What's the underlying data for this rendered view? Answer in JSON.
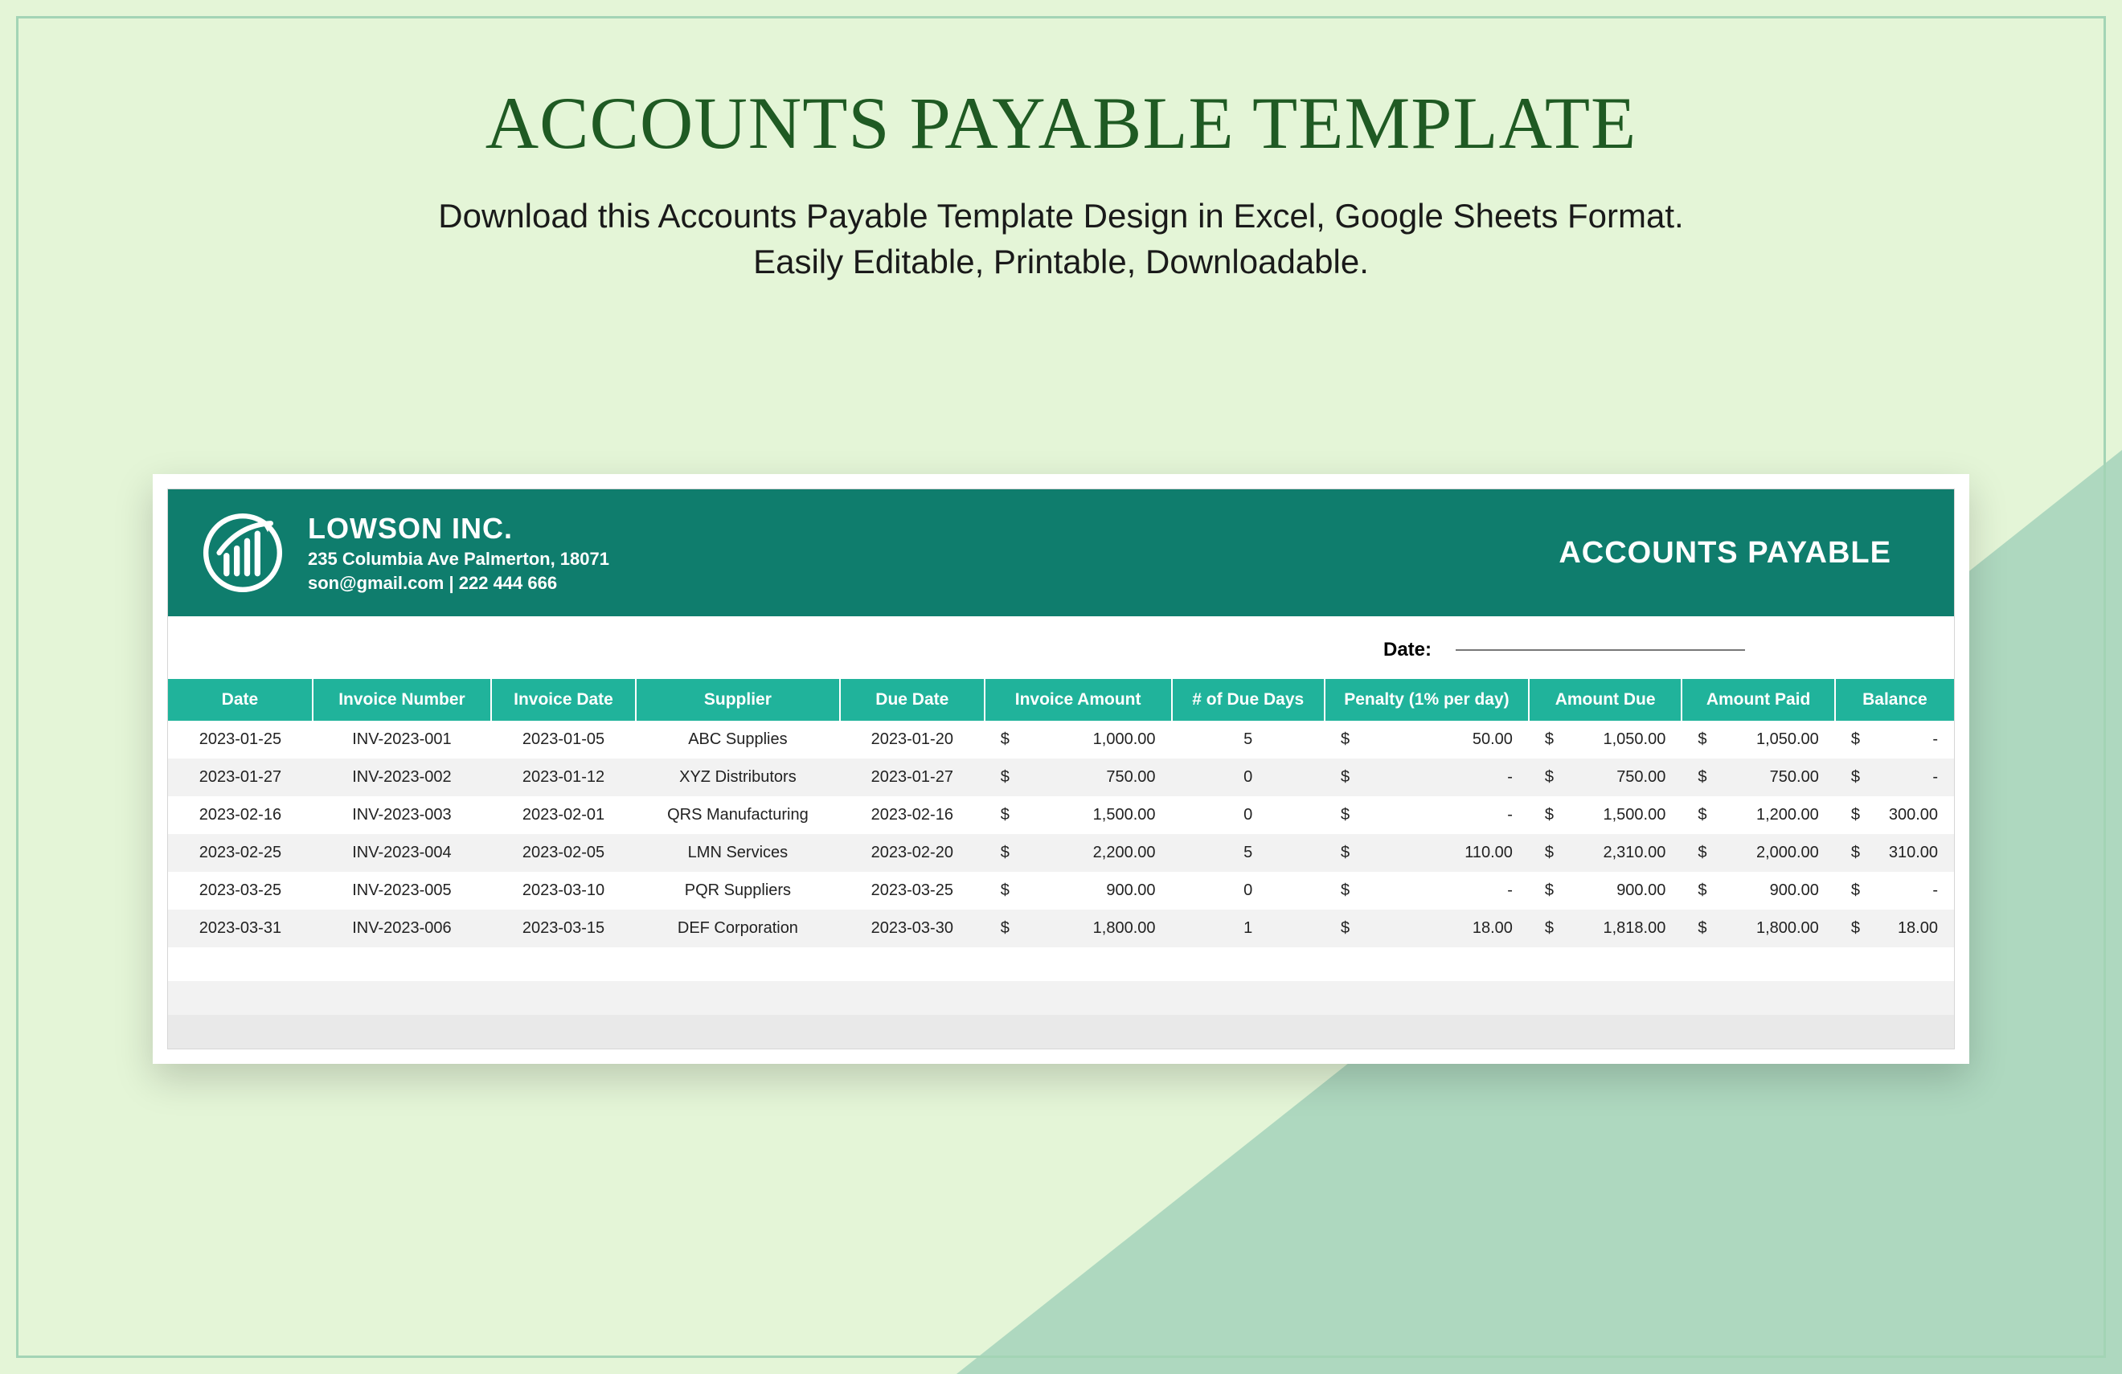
{
  "colors": {
    "page_bg": "#e4f5d7",
    "frame_border": "#a3d4b5",
    "triangle": "#aed8bf",
    "title_text": "#1f5a23",
    "subtitle_text": "#1a1a1a",
    "card_bg": "#ffffff",
    "card_border": "#d6d6d6",
    "banner_bg": "#0f7d6d",
    "banner_text": "#ffffff",
    "thead_bg": "#20b39b",
    "row_alt_bg": "#f2f2f2",
    "footer_bg": "#e9e9e9"
  },
  "hero": {
    "title": "ACCOUNTS PAYABLE TEMPLATE",
    "subtitle_line1": "Download this Accounts Payable Template Design in Excel, Google Sheets Format.",
    "subtitle_line2": "Easily Editable, Printable, Downloadable."
  },
  "banner": {
    "company_name": "LOWSON INC.",
    "address": "235 Columbia Ave Palmerton, 18071",
    "contact": "son@gmail.com | 222 444 666",
    "title": "ACCOUNTS PAYABLE"
  },
  "date_label": "Date:",
  "table": {
    "column_widths_pct": [
      8.5,
      10.5,
      8.5,
      12,
      8.5,
      11,
      9,
      12,
      9,
      9,
      7
    ],
    "columns": [
      "Date",
      "Invoice Number",
      "Invoice Date",
      "Supplier",
      "Due Date",
      "Invoice Amount",
      "# of Due Days",
      "Penalty (1% per day)",
      "Amount Due",
      "Amount Paid",
      "Balance"
    ],
    "money_cols": [
      5,
      7,
      8,
      9,
      10
    ],
    "rows": [
      [
        "2023-01-25",
        "INV-2023-001",
        "2023-01-05",
        "ABC Supplies",
        "2023-01-20",
        "1,000.00",
        "5",
        "50.00",
        "1,050.00",
        "1,050.00",
        "-"
      ],
      [
        "2023-01-27",
        "INV-2023-002",
        "2023-01-12",
        "XYZ Distributors",
        "2023-01-27",
        "750.00",
        "0",
        "-",
        "750.00",
        "750.00",
        "-"
      ],
      [
        "2023-02-16",
        "INV-2023-003",
        "2023-02-01",
        "QRS Manufacturing",
        "2023-02-16",
        "1,500.00",
        "0",
        "-",
        "1,500.00",
        "1,200.00",
        "300.00"
      ],
      [
        "2023-02-25",
        "INV-2023-004",
        "2023-02-05",
        "LMN Services",
        "2023-02-20",
        "2,200.00",
        "5",
        "110.00",
        "2,310.00",
        "2,000.00",
        "310.00"
      ],
      [
        "2023-03-25",
        "INV-2023-005",
        "2023-03-10",
        "PQR Suppliers",
        "2023-03-25",
        "900.00",
        "0",
        "-",
        "900.00",
        "900.00",
        "-"
      ],
      [
        "2023-03-31",
        "INV-2023-006",
        "2023-03-15",
        "DEF Corporation",
        "2023-03-30",
        "1,800.00",
        "1",
        "18.00",
        "1,818.00",
        "1,800.00",
        "18.00"
      ]
    ]
  }
}
